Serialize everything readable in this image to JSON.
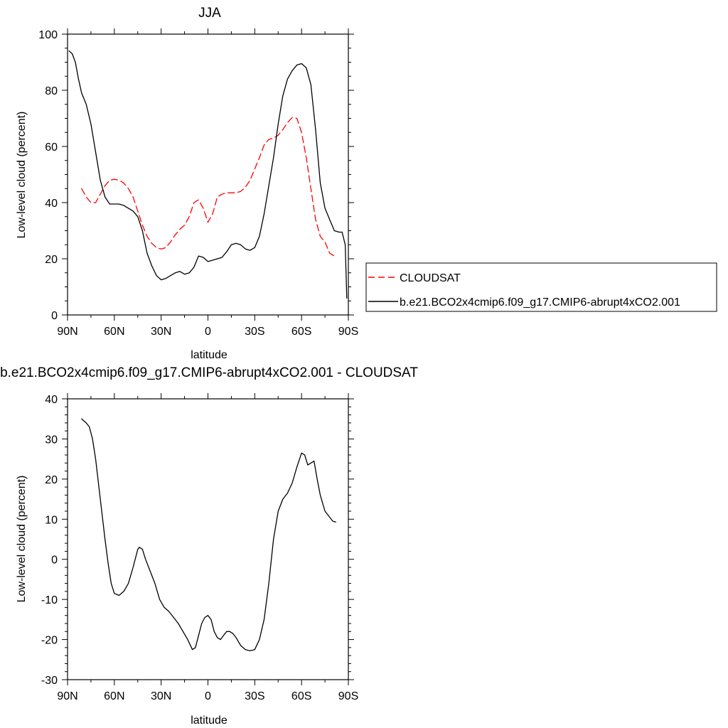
{
  "chart_data": [
    {
      "type": "line",
      "title": "JJA",
      "xlabel": "latitude",
      "ylabel": "Low-level cloud (percent)",
      "xlim": [
        90,
        -90
      ],
      "ylim": [
        0,
        100
      ],
      "xticks": [
        {
          "value": 90,
          "label": "90N"
        },
        {
          "value": 60,
          "label": "60N"
        },
        {
          "value": 30,
          "label": "30N"
        },
        {
          "value": 0,
          "label": "0"
        },
        {
          "value": -30,
          "label": "30S"
        },
        {
          "value": -60,
          "label": "60S"
        },
        {
          "value": -90,
          "label": "90S"
        }
      ],
      "yticks": [
        0,
        20,
        40,
        60,
        80,
        100
      ],
      "grid": false,
      "legend": "right",
      "series": [
        {
          "name": "CLOUDSAT",
          "color": "#ff0000",
          "dash": "dashed",
          "x": [
            81,
            78,
            75,
            72,
            69,
            66,
            63,
            60,
            57,
            54,
            51,
            48,
            45,
            42,
            39,
            36,
            33,
            30,
            27,
            24,
            21,
            18,
            15,
            12,
            9,
            6,
            3,
            0,
            -3,
            -6,
            -9,
            -12,
            -15,
            -18,
            -21,
            -24,
            -27,
            -30,
            -33,
            -36,
            -39,
            -42,
            -45,
            -48,
            -51,
            -54,
            -57,
            -60,
            -63,
            -66,
            -69,
            -72,
            -75,
            -78,
            -81
          ],
          "y": [
            45,
            42,
            40,
            40,
            43,
            46,
            48,
            48.3,
            48,
            47,
            45,
            42,
            37,
            32,
            28,
            25.5,
            24,
            23.5,
            24,
            26,
            28.5,
            30.5,
            32,
            35,
            40,
            41,
            38,
            33,
            36,
            42,
            43,
            43.5,
            43.5,
            43.5,
            44,
            45.5,
            48,
            52,
            56,
            60.5,
            62.5,
            63,
            64,
            66,
            68.5,
            70.3,
            70,
            65,
            56,
            45,
            34,
            28,
            26,
            22,
            21
          ]
        },
        {
          "name": "b.e21.BCO2x4cmip6.f09_g17.CMIP6-abrupt4xCO2.001",
          "color": "#000000",
          "dash": "solid",
          "x": [
            89,
            87,
            85,
            83,
            81,
            78,
            75,
            72,
            69,
            66,
            63,
            60,
            57,
            54,
            51,
            48,
            45,
            42,
            39,
            36,
            33,
            30,
            27,
            24,
            21,
            18,
            15,
            12,
            9,
            6,
            3,
            0,
            -3,
            -6,
            -9,
            -12,
            -15,
            -18,
            -21,
            -24,
            -27,
            -30,
            -33,
            -36,
            -39,
            -42,
            -45,
            -48,
            -51,
            -54,
            -57,
            -60,
            -63,
            -66,
            -69,
            -72,
            -75,
            -78,
            -81,
            -84,
            -86,
            -88,
            -89
          ],
          "y": [
            94,
            93,
            90,
            84,
            79,
            75,
            68,
            58,
            48,
            42,
            39.5,
            39.5,
            39.5,
            39,
            38,
            37,
            35,
            30,
            22,
            17.5,
            14,
            12.5,
            13,
            14,
            15,
            15.5,
            14.5,
            15,
            17,
            21,
            20.5,
            19,
            19.5,
            20,
            20.5,
            22.5,
            25,
            25.5,
            25,
            23.5,
            23,
            24,
            28,
            36,
            46,
            56,
            68,
            78,
            84,
            87,
            89,
            89.5,
            88,
            82,
            66,
            47,
            38,
            34,
            30,
            29.5,
            29.5,
            25,
            6
          ]
        }
      ]
    },
    {
      "type": "line",
      "title": "b.e21.BCO2x4cmip6.f09_g17.CMIP6-abrupt4xCO2.001 - CLOUDSAT",
      "xlabel": "latitude",
      "ylabel": "Low-level cloud (percent)",
      "xlim": [
        90,
        -90
      ],
      "ylim": [
        -30,
        40
      ],
      "xticks": [
        {
          "value": 90,
          "label": "90N"
        },
        {
          "value": 60,
          "label": "60N"
        },
        {
          "value": 30,
          "label": "30N"
        },
        {
          "value": 0,
          "label": "0"
        },
        {
          "value": -30,
          "label": "30S"
        },
        {
          "value": -60,
          "label": "60S"
        },
        {
          "value": -90,
          "label": "90S"
        }
      ],
      "yticks": [
        -30,
        -20,
        -10,
        0,
        10,
        20,
        30,
        40
      ],
      "grid": false,
      "series": [
        {
          "color": "#000000",
          "dash": "solid",
          "x": [
            81,
            78,
            76,
            74,
            72,
            69,
            66,
            64,
            62,
            60,
            57,
            54,
            51,
            48,
            45,
            44,
            42,
            40,
            37,
            34,
            31,
            28,
            25,
            22,
            19,
            16,
            13,
            10,
            8,
            6,
            4,
            2,
            0,
            -2,
            -4,
            -6,
            -8,
            -10,
            -12,
            -14,
            -16,
            -18,
            -21,
            -24,
            -27,
            -30,
            -33,
            -36,
            -39,
            -42,
            -45,
            -48,
            -51,
            -54,
            -57,
            -60,
            -62,
            -64,
            -66,
            -68,
            -70,
            -72,
            -75,
            -77,
            -80,
            -82
          ],
          "y": [
            35,
            34,
            33,
            30,
            25,
            15,
            5,
            -1,
            -6,
            -8.5,
            -9,
            -8,
            -6,
            -2,
            2.5,
            3,
            2.5,
            0,
            -3,
            -6,
            -10,
            -12,
            -13,
            -14.5,
            -16,
            -18,
            -20,
            -22.5,
            -22,
            -19,
            -16,
            -14.5,
            -14,
            -15,
            -18,
            -19.5,
            -20,
            -19,
            -18,
            -18,
            -18.5,
            -19.5,
            -21.5,
            -22.5,
            -22.8,
            -22.5,
            -20,
            -15,
            -6,
            5,
            12,
            15,
            16.5,
            19,
            23,
            26.5,
            26,
            23.5,
            24,
            24.5,
            20,
            16,
            12,
            11,
            9.5,
            9.3
          ]
        }
      ]
    }
  ]
}
